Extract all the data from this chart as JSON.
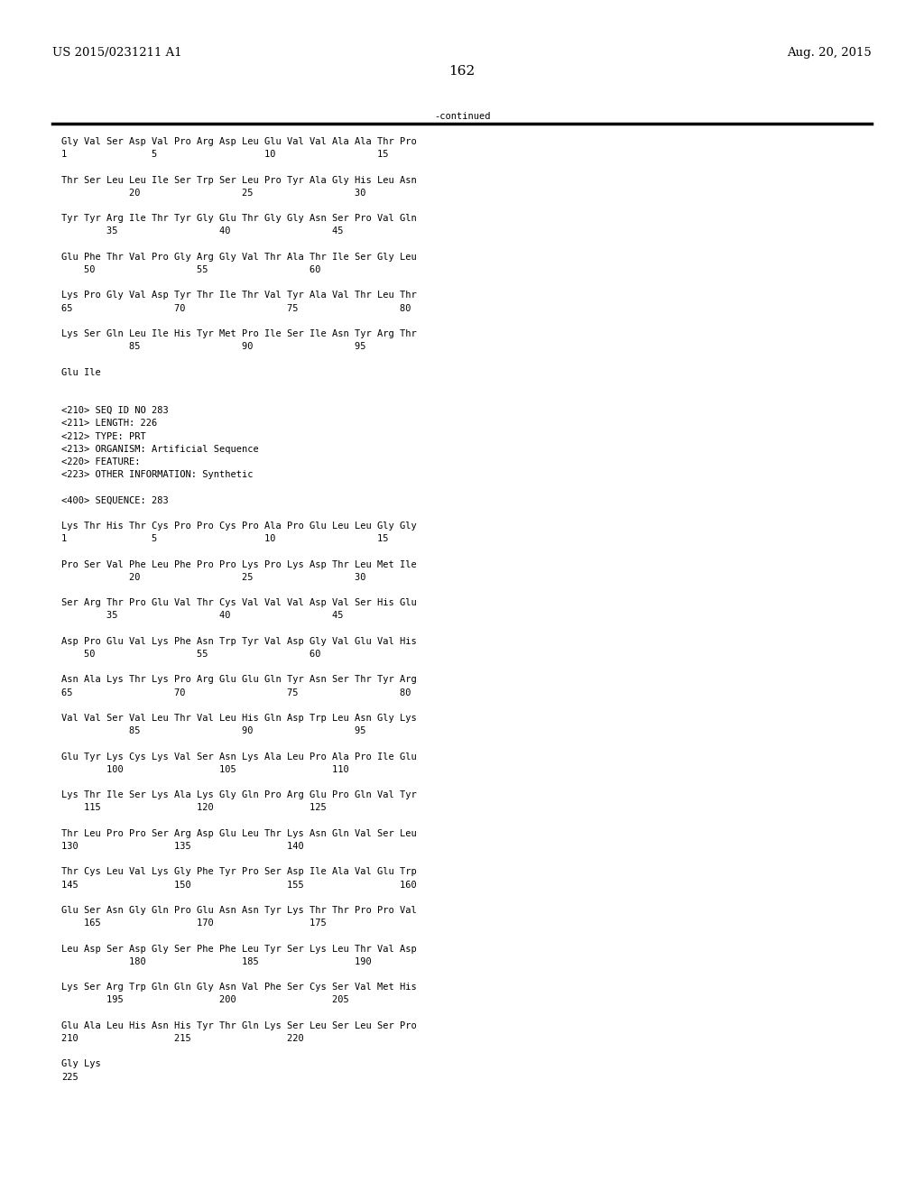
{
  "header_left": "US 2015/0231211 A1",
  "header_right": "Aug. 20, 2015",
  "page_number": "162",
  "continued_label": "-continued",
  "background_color": "#ffffff",
  "text_color": "#000000",
  "font_size": 7.5,
  "mono_font": "DejaVu Sans Mono",
  "header_font_size": 9.5,
  "page_num_font_size": 11,
  "lines": [
    "Gly Val Ser Asp Val Pro Arg Asp Leu Glu Val Val Ala Ala Thr Pro",
    "1               5                   10                  15",
    "",
    "Thr Ser Leu Leu Ile Ser Trp Ser Leu Pro Tyr Ala Gly His Leu Asn",
    "            20                  25                  30",
    "",
    "Tyr Tyr Arg Ile Thr Tyr Gly Glu Thr Gly Gly Asn Ser Pro Val Gln",
    "        35                  40                  45",
    "",
    "Glu Phe Thr Val Pro Gly Arg Gly Val Thr Ala Thr Ile Ser Gly Leu",
    "    50                  55                  60",
    "",
    "Lys Pro Gly Val Asp Tyr Thr Ile Thr Val Tyr Ala Val Thr Leu Thr",
    "65                  70                  75                  80",
    "",
    "Lys Ser Gln Leu Ile His Tyr Met Pro Ile Ser Ile Asn Tyr Arg Thr",
    "            85                  90                  95",
    "",
    "Glu Ile",
    "",
    "",
    "<210> SEQ ID NO 283",
    "<211> LENGTH: 226",
    "<212> TYPE: PRT",
    "<213> ORGANISM: Artificial Sequence",
    "<220> FEATURE:",
    "<223> OTHER INFORMATION: Synthetic",
    "",
    "<400> SEQUENCE: 283",
    "",
    "Lys Thr His Thr Cys Pro Pro Cys Pro Ala Pro Glu Leu Leu Gly Gly",
    "1               5                   10                  15",
    "",
    "Pro Ser Val Phe Leu Phe Pro Pro Lys Pro Lys Asp Thr Leu Met Ile",
    "            20                  25                  30",
    "",
    "Ser Arg Thr Pro Glu Val Thr Cys Val Val Val Asp Val Ser His Glu",
    "        35                  40                  45",
    "",
    "Asp Pro Glu Val Lys Phe Asn Trp Tyr Val Asp Gly Val Glu Val His",
    "    50                  55                  60",
    "",
    "Asn Ala Lys Thr Lys Pro Arg Glu Glu Gln Tyr Asn Ser Thr Tyr Arg",
    "65                  70                  75                  80",
    "",
    "Val Val Ser Val Leu Thr Val Leu His Gln Asp Trp Leu Asn Gly Lys",
    "            85                  90                  95",
    "",
    "Glu Tyr Lys Cys Lys Val Ser Asn Lys Ala Leu Pro Ala Pro Ile Glu",
    "        100                 105                 110",
    "",
    "Lys Thr Ile Ser Lys Ala Lys Gly Gln Pro Arg Glu Pro Gln Val Tyr",
    "    115                 120                 125",
    "",
    "Thr Leu Pro Pro Ser Arg Asp Glu Leu Thr Lys Asn Gln Val Ser Leu",
    "130                 135                 140",
    "",
    "Thr Cys Leu Val Lys Gly Phe Tyr Pro Ser Asp Ile Ala Val Glu Trp",
    "145                 150                 155                 160",
    "",
    "Glu Ser Asn Gly Gln Pro Glu Asn Asn Tyr Lys Thr Thr Pro Pro Val",
    "    165                 170                 175",
    "",
    "Leu Asp Ser Asp Gly Ser Phe Phe Leu Tyr Ser Lys Leu Thr Val Asp",
    "            180                 185                 190",
    "",
    "Lys Ser Arg Trp Gln Gln Gly Asn Val Phe Ser Cys Ser Val Met His",
    "        195                 200                 205",
    "",
    "Glu Ala Leu His Asn His Tyr Thr Gln Lys Ser Leu Ser Leu Ser Pro",
    "210                 215                 220",
    "",
    "Gly Lys",
    "225"
  ]
}
